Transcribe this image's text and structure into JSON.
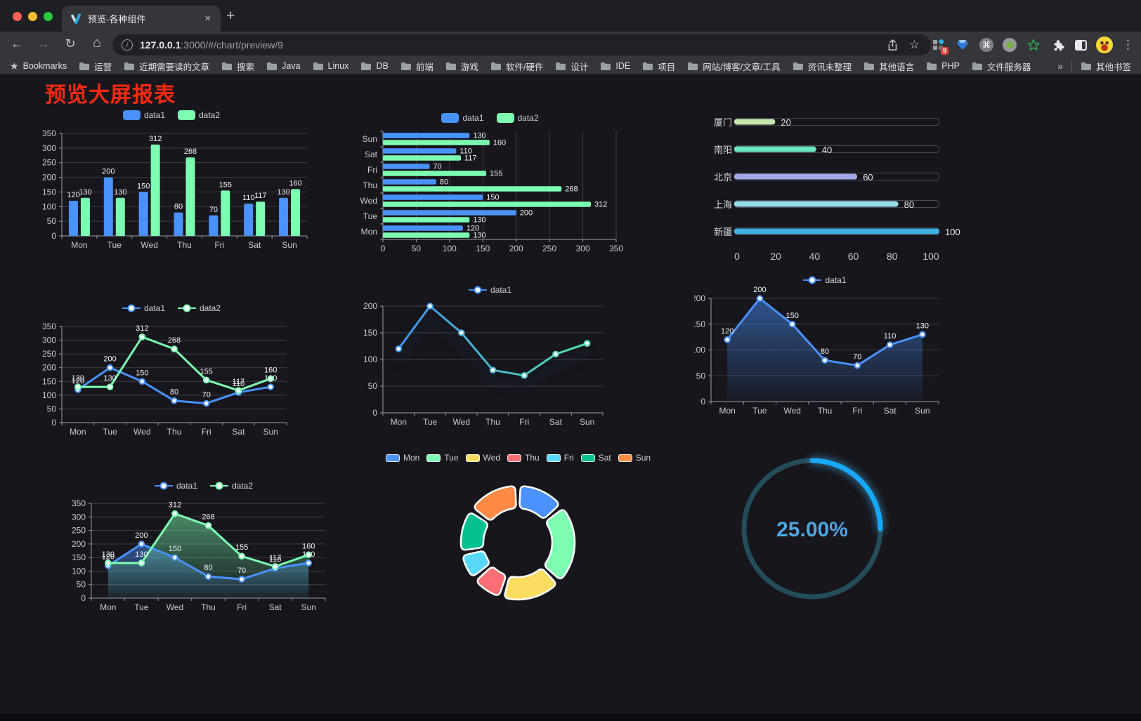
{
  "browser": {
    "traffic_lights": [
      "#ff5f57",
      "#febc2e",
      "#28c840"
    ],
    "tab": {
      "title": "预览-各种组件"
    },
    "address": {
      "url_host": "127.0.0.1",
      "url_rest": ":3000/#/chart/preview/9"
    },
    "extension_badge": "9",
    "bookmarks_bar": {
      "bookmarks_label": "Bookmarks",
      "folders": [
        "运营",
        "近期需要读的文章",
        "搜索",
        "Java",
        "Linux",
        "DB",
        "前端",
        "游戏",
        "软件/硬件",
        "设计",
        "IDE",
        "项目",
        "网站/博客/文章/工具",
        "资讯未整理",
        "其他语言",
        "PHP",
        "文件服务器"
      ],
      "overflow": "»",
      "other_bookmarks": "其他书签"
    }
  },
  "icons": {
    "back": "←",
    "forward": "→",
    "reload": "↻",
    "home": "⌂",
    "info": "i",
    "star": "☆",
    "bookmarks_star": "★",
    "kebab": "⋮",
    "command": "⌘",
    "close": "×",
    "new_tab": "+"
  },
  "page": {
    "title": "预览大屏报表",
    "title_color": "#fb2a10",
    "background": "#16161c"
  },
  "chart_data": [
    {
      "id": "bar-grouped",
      "type": "bar",
      "categories": [
        "Mon",
        "Tue",
        "Wed",
        "Thu",
        "Fri",
        "Sat",
        "Sun"
      ],
      "series": [
        {
          "name": "data1",
          "color": "#4992ff",
          "values": [
            120,
            200,
            150,
            80,
            70,
            110,
            130
          ]
        },
        {
          "name": "data2",
          "color": "#7cffb2",
          "values": [
            130,
            130,
            312,
            268,
            155,
            117,
            160
          ]
        }
      ],
      "ylim": [
        0,
        350
      ],
      "ytick_step": 50,
      "labels": true,
      "legend_position": "top",
      "grid": true
    },
    {
      "id": "bar-horizontal",
      "type": "hbar",
      "categories": [
        "Mon",
        "Tue",
        "Wed",
        "Thu",
        "Fri",
        "Sat",
        "Sun"
      ],
      "category_display": "Sun at top, Mon at bottom",
      "series": [
        {
          "name": "data1",
          "color": "#4992ff",
          "values": [
            120,
            200,
            150,
            80,
            70,
            110,
            130
          ]
        },
        {
          "name": "data2",
          "color": "#7cffb2",
          "values": [
            130,
            130,
            312,
            268,
            155,
            117,
            160
          ]
        }
      ],
      "xlim": [
        0,
        350
      ],
      "xtick_step": 50,
      "labels": true,
      "legend_position": "top",
      "grid": true
    },
    {
      "id": "progress-bars",
      "type": "progress",
      "max": 100,
      "xticks": [
        0,
        20,
        40,
        60,
        80,
        100
      ],
      "items": [
        {
          "label": "厦门",
          "value": 20,
          "color": "#c4ebad"
        },
        {
          "label": "南阳",
          "value": 40,
          "color": "#6be6c1"
        },
        {
          "label": "北京",
          "value": 60,
          "color": "#a0a7e6"
        },
        {
          "label": "上海",
          "value": 80,
          "color": "#96dee8"
        },
        {
          "label": "新疆",
          "value": 100,
          "color": "#3fb1e3"
        }
      ]
    },
    {
      "id": "line-two-series",
      "type": "line",
      "categories": [
        "Mon",
        "Tue",
        "Wed",
        "Thu",
        "Fri",
        "Sat",
        "Sun"
      ],
      "series": [
        {
          "name": "data1",
          "color": "#4992ff",
          "values": [
            120,
            200,
            150,
            80,
            70,
            110,
            130
          ]
        },
        {
          "name": "data2",
          "color": "#7cffb2",
          "values": [
            130,
            130,
            312,
            268,
            155,
            117,
            160
          ]
        }
      ],
      "ylim": [
        0,
        350
      ],
      "ytick_step": 50,
      "labels": true,
      "markers": true,
      "legend_position": "top",
      "grid": true
    },
    {
      "id": "line-gradient",
      "type": "line",
      "categories": [
        "Mon",
        "Tue",
        "Wed",
        "Thu",
        "Fri",
        "Sat",
        "Sun"
      ],
      "series": [
        {
          "name": "data1",
          "color_gradient": [
            "#3e8ef7",
            "#53e6a7"
          ],
          "values": [
            120,
            200,
            150,
            80,
            70,
            110,
            130
          ]
        }
      ],
      "ylim": [
        0,
        200
      ],
      "ytick_step": 50,
      "labels": false,
      "markers": true,
      "shadow": true,
      "legend_position": "top",
      "grid": true
    },
    {
      "id": "line-area",
      "type": "line",
      "categories": [
        "Mon",
        "Tue",
        "Wed",
        "Thu",
        "Fri",
        "Sat",
        "Sun"
      ],
      "series": [
        {
          "name": "data1",
          "color": "#4992ff",
          "area": true,
          "values": [
            120,
            200,
            150,
            80,
            70,
            110,
            130
          ]
        }
      ],
      "ylim": [
        0,
        200
      ],
      "ytick_step": 50,
      "labels": true,
      "markers": true,
      "legend_position": "top",
      "grid": true
    },
    {
      "id": "line-two-series-area",
      "type": "line",
      "categories": [
        "Mon",
        "Tue",
        "Wed",
        "Thu",
        "Fri",
        "Sat",
        "Sun"
      ],
      "series": [
        {
          "name": "data1",
          "color": "#4992ff",
          "area": true,
          "values": [
            120,
            200,
            150,
            80,
            70,
            110,
            130
          ]
        },
        {
          "name": "data2",
          "color": "#7cffb2",
          "area": true,
          "values": [
            130,
            130,
            312,
            268,
            155,
            117,
            160
          ]
        }
      ],
      "ylim": [
        0,
        350
      ],
      "ytick_step": 50,
      "labels": true,
      "markers": true,
      "legend_position": "top",
      "grid": true
    },
    {
      "id": "donut",
      "type": "pie",
      "inner_radius_ratio": 0.6,
      "border_color": "#ffffff",
      "items": [
        {
          "label": "Mon",
          "value": 120,
          "color": "#4992ff"
        },
        {
          "label": "Tue",
          "value": 200,
          "color": "#7cffb2"
        },
        {
          "label": "Wed",
          "value": 150,
          "color": "#fddd60"
        },
        {
          "label": "Thu",
          "value": 80,
          "color": "#ff6e76"
        },
        {
          "label": "Fri",
          "value": 70,
          "color": "#58d9f9"
        },
        {
          "label": "Sat",
          "value": 110,
          "color": "#05c091"
        },
        {
          "label": "Sun",
          "value": 130,
          "color": "#ff8a45"
        }
      ],
      "legend_position": "top"
    },
    {
      "id": "gauge",
      "type": "gauge",
      "value": 25,
      "max": 100,
      "label": "25.00%",
      "color": "#17a8fb",
      "track_color": "#244c5a",
      "text_color": "#4fa5e0"
    }
  ]
}
